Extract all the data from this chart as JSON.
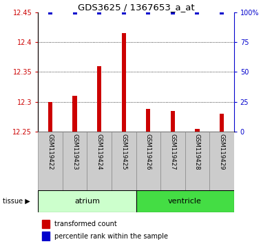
{
  "title": "GDS3625 / 1367653_a_at",
  "samples": [
    "GSM119422",
    "GSM119423",
    "GSM119424",
    "GSM119425",
    "GSM119426",
    "GSM119427",
    "GSM119428",
    "GSM119429"
  ],
  "transformed_counts": [
    12.3,
    12.31,
    12.36,
    12.415,
    12.288,
    12.285,
    12.255,
    12.28
  ],
  "percentile_ranks": [
    100,
    100,
    100,
    100,
    100,
    100,
    100,
    100
  ],
  "bar_base": 12.25,
  "bar_color": "#cc0000",
  "dot_color": "#0000cc",
  "ylim_left": [
    12.25,
    12.45
  ],
  "ylim_right": [
    0,
    100
  ],
  "yticks_left": [
    12.25,
    12.3,
    12.35,
    12.4,
    12.45
  ],
  "ytick_labels_left": [
    "12.25",
    "12.3",
    "12.35",
    "12.4",
    "12.45"
  ],
  "yticks_right": [
    0,
    25,
    50,
    75,
    100
  ],
  "ytick_labels_right": [
    "0",
    "25",
    "50",
    "75",
    "100%"
  ],
  "gridlines": [
    12.3,
    12.35,
    12.4
  ],
  "bar_width": 0.18,
  "dot_size": 4,
  "atrium_color_light": "#ccffcc",
  "atrium_color": "#ccffcc",
  "ventricle_color": "#44dd44",
  "label_box_color": "#cccccc",
  "label_box_edge": "#888888",
  "font_size_ticks": 7,
  "font_size_labels": 7.5,
  "font_size_title": 9.5,
  "font_size_tissue": 8,
  "font_size_legend": 7
}
